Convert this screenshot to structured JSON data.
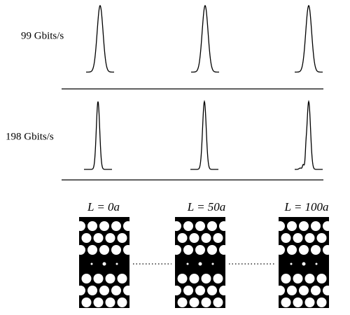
{
  "rows": [
    {
      "label": "99 Gbits/s"
    },
    {
      "label": "198 Gbits/s"
    }
  ],
  "positions": [
    {
      "label": "L = 0a"
    },
    {
      "label": "L = 50a"
    },
    {
      "label": "L = 100a"
    }
  ]
}
